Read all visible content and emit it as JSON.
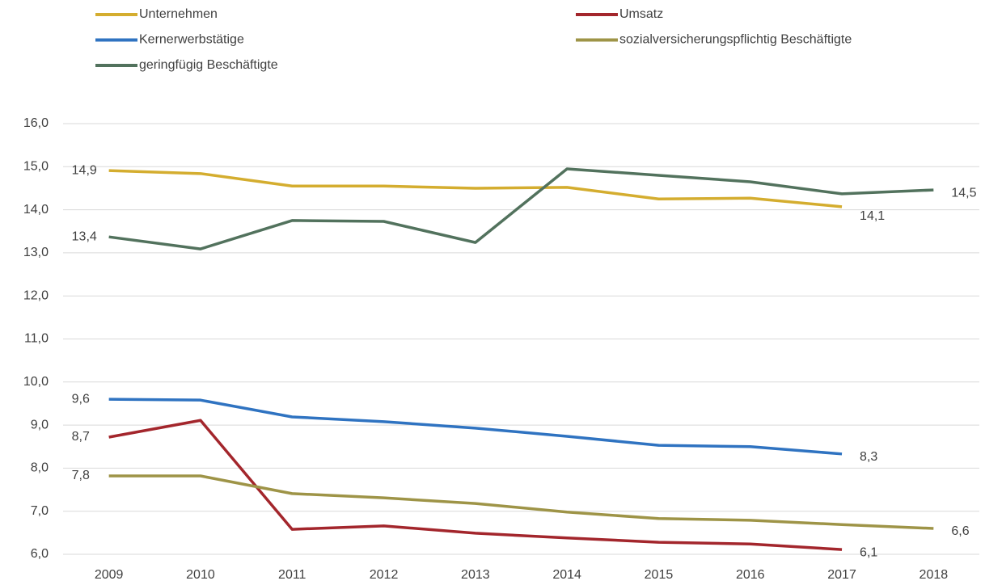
{
  "chart_data": {
    "type": "line",
    "categories": [
      "2009",
      "2010",
      "2011",
      "2012",
      "2013",
      "2014",
      "2015",
      "2016",
      "2017",
      "2018"
    ],
    "series": [
      {
        "name": "Unternehmen",
        "color": "#d4ad2f",
        "values": [
          14.91,
          14.84,
          14.55,
          14.55,
          14.5,
          14.52,
          14.25,
          14.27,
          14.07,
          null
        ],
        "value_labels": [
          "14,9",
          null,
          null,
          null,
          null,
          null,
          null,
          null,
          "14,1",
          null
        ]
      },
      {
        "name": "Umsatz",
        "color": "#a3262c",
        "values": [
          8.72,
          9.11,
          6.58,
          6.66,
          6.49,
          6.38,
          6.28,
          6.24,
          6.11,
          null
        ],
        "value_labels": [
          "8,7",
          null,
          null,
          null,
          null,
          null,
          null,
          null,
          "6,1",
          null
        ]
      },
      {
        "name": "Kernerwerbstätige",
        "color": "#2f73c1",
        "values": [
          9.6,
          9.58,
          9.19,
          9.08,
          8.93,
          8.74,
          8.53,
          8.5,
          8.33,
          null
        ],
        "value_labels": [
          "9,6",
          null,
          null,
          null,
          null,
          null,
          null,
          null,
          "8,3",
          null
        ]
      },
      {
        "name": "sozialversicherungspflichtig Beschäftigte",
        "color": "#9e9447",
        "values": [
          7.82,
          7.82,
          7.41,
          7.31,
          7.18,
          6.98,
          6.83,
          6.79,
          6.69,
          6.6
        ],
        "value_labels": [
          "7,8",
          null,
          null,
          null,
          null,
          null,
          null,
          null,
          null,
          "6,6"
        ]
      },
      {
        "name": "geringfügig Beschäftigte",
        "color": "#52725d",
        "values": [
          13.37,
          13.09,
          13.75,
          13.73,
          13.24,
          14.95,
          14.8,
          14.65,
          14.37,
          14.46
        ],
        "value_labels": [
          "13,4",
          null,
          null,
          null,
          null,
          null,
          null,
          null,
          null,
          "14,5"
        ]
      }
    ],
    "ylim": [
      6,
      16
    ],
    "yticks": [
      {
        "value": 6,
        "label": "6,0"
      },
      {
        "value": 7,
        "label": "7,0"
      },
      {
        "value": 8,
        "label": "8,0"
      },
      {
        "value": 9,
        "label": "9,0"
      },
      {
        "value": 10,
        "label": "10,0"
      },
      {
        "value": 11,
        "label": "11,0"
      },
      {
        "value": 12,
        "label": "12,0"
      },
      {
        "value": 13,
        "label": "13,0"
      },
      {
        "value": 14,
        "label": "14,0"
      },
      {
        "value": 15,
        "label": "15,0"
      },
      {
        "value": 16,
        "label": "16,0"
      }
    ],
    "grid": true,
    "legend": "top"
  }
}
